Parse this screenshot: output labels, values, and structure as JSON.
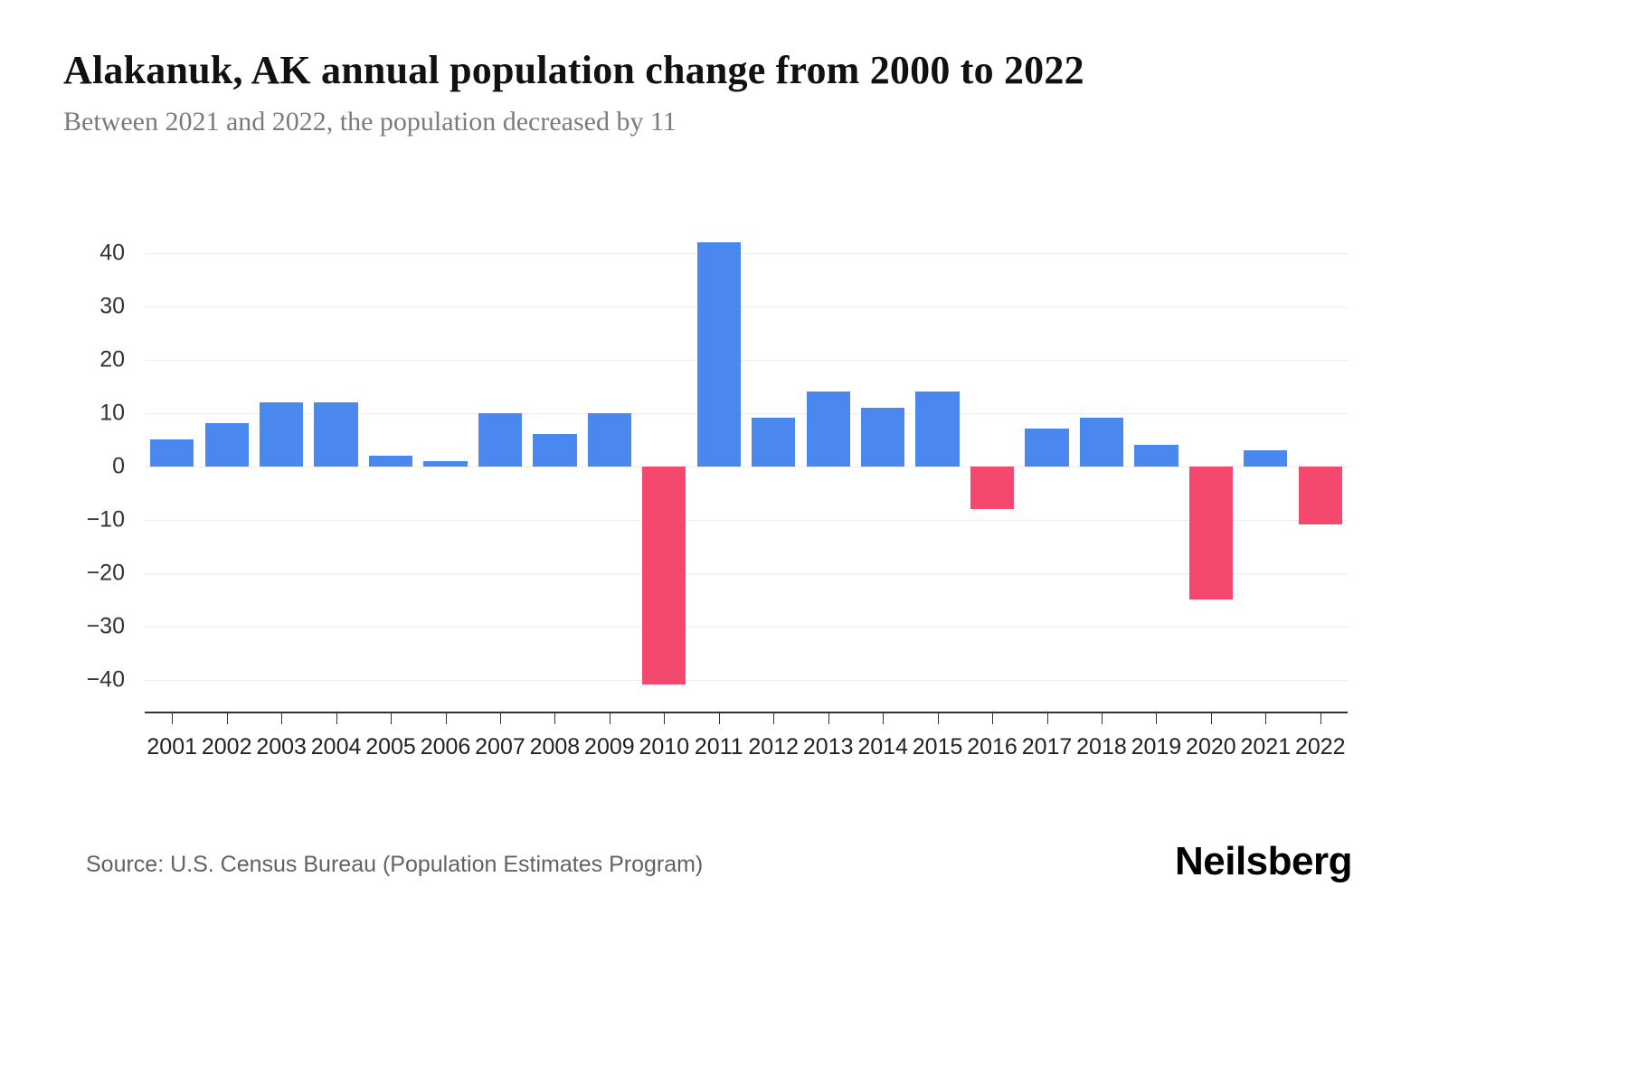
{
  "header": {
    "title": "Alakanuk, AK annual population change from 2000 to 2022",
    "subtitle": "Between 2021 and 2022, the population decreased by 11"
  },
  "footer": {
    "source": "Source: U.S. Census Bureau (Population Estimates Program)",
    "brand": "Neilsberg"
  },
  "colors": {
    "positive": "#4A87EE",
    "negative": "#F4486F",
    "grid": "#ececec",
    "axis": "#333333"
  },
  "chart_data": {
    "type": "bar",
    "title": "Alakanuk, AK annual population change from 2000 to 2022",
    "subtitle": "Between 2021 and 2022, the population decreased by 11",
    "xlabel": "",
    "ylabel": "",
    "categories": [
      "2001",
      "2002",
      "2003",
      "2004",
      "2005",
      "2006",
      "2007",
      "2008",
      "2009",
      "2010",
      "2011",
      "2012",
      "2013",
      "2014",
      "2015",
      "2016",
      "2017",
      "2018",
      "2019",
      "2020",
      "2021",
      "2022"
    ],
    "values": [
      5,
      8,
      12,
      12,
      2,
      1,
      10,
      6,
      10,
      -41,
      42,
      9,
      14,
      11,
      14,
      -8,
      7,
      9,
      4,
      -25,
      3,
      -11
    ],
    "bar_colors_rule": "positive values blue, negative values pink",
    "yticks": [
      40,
      30,
      20,
      10,
      0,
      -10,
      -20,
      -30,
      -40
    ],
    "ylim": [
      -46,
      45
    ],
    "grid": true,
    "legend": "none"
  }
}
